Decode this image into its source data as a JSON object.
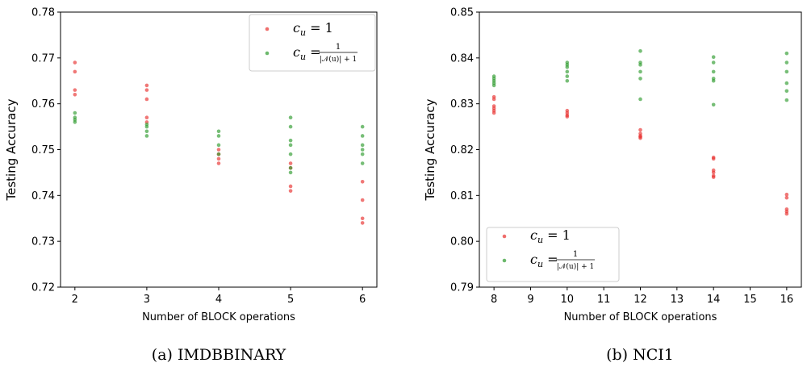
{
  "chart_data": [
    {
      "type": "scatter",
      "caption": "(a) IMDBBINARY",
      "xlabel": "Number of BLOCK operations",
      "ylabel": "Testing Accuracy",
      "xlim": [
        1.8,
        6.2
      ],
      "ylim": [
        0.72,
        0.78
      ],
      "xticks": [
        2,
        3,
        4,
        5,
        6
      ],
      "yticks": [
        0.72,
        0.73,
        0.74,
        0.75,
        0.76,
        0.77,
        0.78
      ],
      "ytick_labels": [
        "0.72",
        "0.73",
        "0.74",
        "0.75",
        "0.76",
        "0.77",
        "0.78"
      ],
      "legend_position": "top-right",
      "series": [
        {
          "name": "c_u = 1",
          "color": "#e8302e",
          "points": [
            [
              2,
              0.769
            ],
            [
              2,
              0.767
            ],
            [
              2,
              0.763
            ],
            [
              2,
              0.762
            ],
            [
              3,
              0.764
            ],
            [
              3,
              0.763
            ],
            [
              3,
              0.761
            ],
            [
              3,
              0.757
            ],
            [
              3,
              0.756
            ],
            [
              4,
              0.75
            ],
            [
              4,
              0.749
            ],
            [
              4,
              0.748
            ],
            [
              4,
              0.747
            ],
            [
              5,
              0.747
            ],
            [
              5,
              0.746
            ],
            [
              5,
              0.742
            ],
            [
              5,
              0.741
            ],
            [
              6,
              0.743
            ],
            [
              6,
              0.739
            ],
            [
              6,
              0.735
            ],
            [
              6,
              0.734
            ]
          ]
        },
        {
          "name": "c_u = 1/(|N(u)|+1)",
          "color": "#2e9b2e",
          "points": [
            [
              2,
              0.758
            ],
            [
              2,
              0.757
            ],
            [
              2,
              0.7565
            ],
            [
              2,
              0.756
            ],
            [
              3,
              0.7555
            ],
            [
              3,
              0.755
            ],
            [
              3,
              0.754
            ],
            [
              3,
              0.753
            ],
            [
              4,
              0.754
            ],
            [
              4,
              0.753
            ],
            [
              4,
              0.751
            ],
            [
              4,
              0.749
            ],
            [
              5,
              0.757
            ],
            [
              5,
              0.755
            ],
            [
              5,
              0.752
            ],
            [
              5,
              0.751
            ],
            [
              5,
              0.749
            ],
            [
              5,
              0.746
            ],
            [
              5,
              0.745
            ],
            [
              6,
              0.755
            ],
            [
              6,
              0.753
            ],
            [
              6,
              0.751
            ],
            [
              6,
              0.75
            ],
            [
              6,
              0.749
            ],
            [
              6,
              0.747
            ]
          ]
        }
      ]
    },
    {
      "type": "scatter",
      "caption": "(b) NCI1",
      "xlabel": "Number of BLOCK operations",
      "ylabel": "Testing Accuracy",
      "xlim": [
        7.6,
        16.4
      ],
      "ylim": [
        0.79,
        0.85
      ],
      "xticks": [
        8,
        9,
        10,
        11,
        12,
        13,
        14,
        15,
        16
      ],
      "yticks": [
        0.79,
        0.8,
        0.81,
        0.82,
        0.83,
        0.84,
        0.85
      ],
      "ytick_labels": [
        "0.79",
        "0.80",
        "0.81",
        "0.82",
        "0.83",
        "0.84",
        "0.85"
      ],
      "legend_position": "bottom-left",
      "series": [
        {
          "name": "c_u = 1",
          "color": "#e8302e",
          "points": [
            [
              8,
              0.8315
            ],
            [
              8,
              0.831
            ],
            [
              8,
              0.8295
            ],
            [
              8,
              0.829
            ],
            [
              8,
              0.8285
            ],
            [
              8,
              0.828
            ],
            [
              10,
              0.8285
            ],
            [
              10,
              0.828
            ],
            [
              10,
              0.8275
            ],
            [
              10,
              0.8272
            ],
            [
              12,
              0.8243
            ],
            [
              12,
              0.8235
            ],
            [
              12,
              0.823
            ],
            [
              12,
              0.8228
            ],
            [
              12,
              0.8225
            ],
            [
              14,
              0.8183
            ],
            [
              14,
              0.818
            ],
            [
              14,
              0.8155
            ],
            [
              14,
              0.815
            ],
            [
              14,
              0.8143
            ],
            [
              14,
              0.814
            ],
            [
              16,
              0.8102
            ],
            [
              16,
              0.8095
            ],
            [
              16,
              0.807
            ],
            [
              16,
              0.8065
            ],
            [
              16,
              0.806
            ]
          ]
        },
        {
          "name": "c_u = 1/(|N(u)|+1)",
          "color": "#2e9b2e",
          "points": [
            [
              8,
              0.836
            ],
            [
              8,
              0.8355
            ],
            [
              8,
              0.835
            ],
            [
              8,
              0.8345
            ],
            [
              8,
              0.834
            ],
            [
              10,
              0.839
            ],
            [
              10,
              0.8385
            ],
            [
              10,
              0.838
            ],
            [
              10,
              0.837
            ],
            [
              10,
              0.836
            ],
            [
              10,
              0.835
            ],
            [
              12,
              0.8415
            ],
            [
              12,
              0.839
            ],
            [
              12,
              0.8385
            ],
            [
              12,
              0.837
            ],
            [
              12,
              0.8355
            ],
            [
              12,
              0.831
            ],
            [
              14,
              0.8402
            ],
            [
              14,
              0.839
            ],
            [
              14,
              0.837
            ],
            [
              14,
              0.8355
            ],
            [
              14,
              0.835
            ],
            [
              14,
              0.8298
            ],
            [
              16,
              0.841
            ],
            [
              16,
              0.839
            ],
            [
              16,
              0.837
            ],
            [
              16,
              0.8345
            ],
            [
              16,
              0.8328
            ],
            [
              16,
              0.8308
            ]
          ]
        }
      ]
    }
  ]
}
